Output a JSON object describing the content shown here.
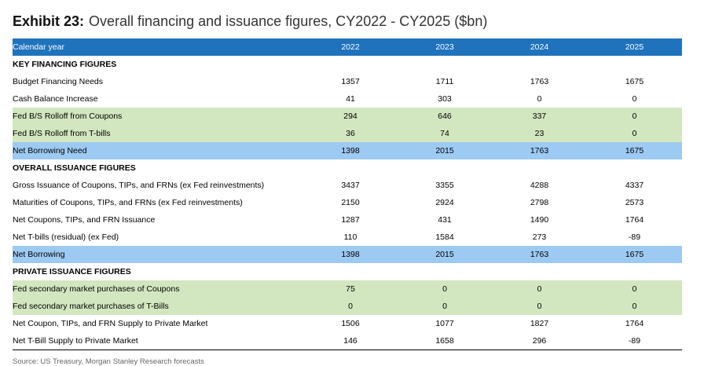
{
  "exhibit": {
    "label": "Exhibit 23:",
    "title": "Overall financing and issuance figures, CY2022 - CY2025 ($bn)"
  },
  "table": {
    "header": {
      "label": "Calendar year",
      "years": [
        "2022",
        "2023",
        "2024",
        "2025"
      ]
    },
    "rows": [
      {
        "type": "section",
        "label": "KEY FINANCING FIGURES",
        "values": []
      },
      {
        "type": "plain",
        "label": "Budget Financing Needs",
        "values": [
          "1357",
          "1711",
          "1763",
          "1675"
        ]
      },
      {
        "type": "plain",
        "label": "Cash Balance Increase",
        "values": [
          "41",
          "303",
          "0",
          "0"
        ]
      },
      {
        "type": "green",
        "label": "Fed B/S Rolloff from Coupons",
        "values": [
          "294",
          "646",
          "337",
          "0"
        ]
      },
      {
        "type": "green",
        "label": "Fed B/S Rolloff from T-bills",
        "values": [
          "36",
          "74",
          "23",
          "0"
        ]
      },
      {
        "type": "blue",
        "label": "Net Borrowing Need",
        "values": [
          "1398",
          "2015",
          "1763",
          "1675"
        ]
      },
      {
        "type": "section",
        "label": "OVERALL ISSUANCE FIGURES",
        "values": []
      },
      {
        "type": "plain",
        "label": "Gross Issuance of Coupons, TIPs, and FRNs (ex Fed reinvestments)",
        "values": [
          "3437",
          "3355",
          "4288",
          "4337"
        ]
      },
      {
        "type": "plain",
        "label": "Maturities of Coupons, TIPs, and FRNs (ex Fed reinvestments)",
        "values": [
          "2150",
          "2924",
          "2798",
          "2573"
        ]
      },
      {
        "type": "plain",
        "label": "Net Coupons, TIPs, and FRN Issuance",
        "values": [
          "1287",
          "431",
          "1490",
          "1764"
        ]
      },
      {
        "type": "plain",
        "label": "Net T-bills (residual) (ex Fed)",
        "values": [
          "110",
          "1584",
          "273",
          "-89"
        ]
      },
      {
        "type": "blue",
        "label": "Net Borrowing",
        "values": [
          "1398",
          "2015",
          "1763",
          "1675"
        ]
      },
      {
        "type": "section",
        "label": "PRIVATE ISSUANCE FIGURES",
        "values": []
      },
      {
        "type": "green",
        "label": "Fed secondary market purchases of Coupons",
        "values": [
          "75",
          "0",
          "0",
          "0"
        ]
      },
      {
        "type": "green",
        "label": "Fed secondary market purchases of T-Bills",
        "values": [
          "0",
          "0",
          "0",
          "0"
        ]
      },
      {
        "type": "plain",
        "label": "Net Coupon, TIPs, and FRN Supply to Private Market",
        "values": [
          "1506",
          "1077",
          "1827",
          "1764"
        ]
      },
      {
        "type": "plain",
        "label": "Net T-Bill Supply to Private Market",
        "values": [
          "146",
          "1658",
          "296",
          "-89"
        ]
      }
    ]
  },
  "source": "Source: US Treasury, Morgan Stanley Research forecasts"
}
